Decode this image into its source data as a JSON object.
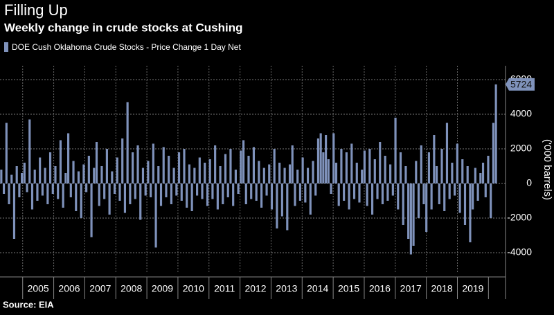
{
  "chart_data": {
    "type": "bar",
    "title": "Filling Up",
    "subtitle": "Weekly change in crude stocks at Cushing",
    "series": [
      {
        "name": "DOE Cush Oklahoma Crude Stocks - Price Change 1 Day Net",
        "color": "#7f92bb",
        "values": [
          800,
          -600,
          3500,
          -1200,
          500,
          -3200,
          1000,
          -800,
          600,
          1200,
          -500,
          3700,
          -1500,
          800,
          -1000,
          1500,
          -700,
          900,
          -1200,
          1800,
          -600,
          1000,
          -900,
          2500,
          -1400,
          600,
          2900,
          -800,
          1300,
          -1600,
          700,
          -2000,
          1100,
          -500,
          1600,
          -3100,
          900,
          2400,
          -1300,
          1000,
          -900,
          2000,
          -1800,
          700,
          -600,
          1500,
          -1000,
          2600,
          -1700,
          4700,
          -1200,
          1800,
          -900,
          2200,
          -2100,
          900,
          -700,
          1300,
          -800,
          2300,
          -3700,
          1000,
          -1300,
          2100,
          -800,
          1600,
          -1200,
          900,
          -700,
          1800,
          -1000,
          2000,
          -1400,
          1100,
          -1600,
          900,
          -700,
          1500,
          -900,
          1200,
          -1300,
          1400,
          -900,
          2200,
          -1500,
          1000,
          -1200,
          1700,
          -800,
          2000,
          -1300,
          800,
          -600,
          1900,
          2500,
          -1200,
          1600,
          -900,
          2100,
          -1000,
          1300,
          -1400,
          900,
          -700,
          1100,
          -1500,
          2000,
          -2600,
          1200,
          -1900,
          900,
          -2700,
          1100,
          2200,
          -1300,
          800,
          -1000,
          1500,
          -1100,
          900,
          -1800,
          1300,
          -700,
          2600,
          2900,
          1800,
          2800,
          1400,
          -600,
          2900,
          1200,
          -1300,
          2000,
          -1000,
          1800,
          -1500,
          2300,
          -900,
          1200,
          -1100,
          800,
          1900,
          -1300,
          2000,
          -1800,
          1400,
          -900,
          2400,
          -1200,
          1600,
          -1000,
          1100,
          -700,
          3800,
          -1500,
          1800,
          -2400,
          1000,
          -3200,
          -4100,
          -3600,
          1300,
          -2000,
          2200,
          -1200,
          -2800,
          1800,
          -1500,
          2800,
          1000,
          -1200,
          2000,
          -1600,
          3500,
          -900,
          1200,
          -700,
          2300,
          -1700,
          1400,
          -2400,
          1000,
          -3400,
          -1500,
          900,
          -1000,
          600,
          1200,
          -800,
          1600,
          -2000,
          3500,
          5724
        ]
      }
    ],
    "y_axis_label": "('000 barrels)",
    "ylim": [
      -5200,
      6800
    ],
    "yticks": [
      -4000,
      -2000,
      0,
      2000,
      4000,
      6000
    ],
    "xlim": [
      2004.27,
      2020.55
    ],
    "xticks": [
      2005,
      2006,
      2007,
      2008,
      2009,
      2010,
      2011,
      2012,
      2013,
      2014,
      2015,
      2016,
      2017,
      2018,
      2019
    ],
    "grid": true,
    "source": "Source: EIA"
  }
}
